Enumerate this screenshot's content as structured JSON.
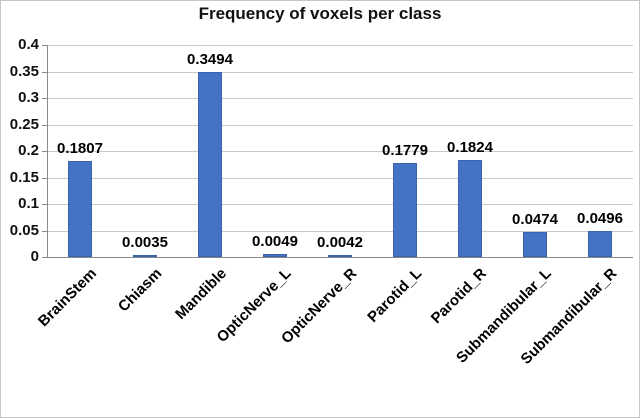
{
  "chart_data": {
    "type": "bar",
    "title": "Frequency of voxels per class",
    "categories": [
      "BrainStem",
      "Chiasm",
      "Mandible",
      "OpticNerve_L",
      "OpticNerve_R",
      "Parotid_L",
      "Parotid_R",
      "Submandibular_L",
      "Submandibular_R"
    ],
    "values": [
      0.1807,
      0.0035,
      0.3494,
      0.0049,
      0.0042,
      0.1779,
      0.1824,
      0.0474,
      0.0496
    ],
    "value_labels": [
      "0.1807",
      "0.0035",
      "0.3494",
      "0.0049",
      "0.0042",
      "0.1779",
      "0.1824",
      "0.0474",
      "0.0496"
    ],
    "xlabel": "",
    "ylabel": "",
    "ylim": [
      0,
      0.4
    ],
    "yticks": [
      "0",
      "0.05",
      "0.1",
      "0.15",
      "0.2",
      "0.25",
      "0.3",
      "0.35",
      "0.4"
    ],
    "grid": true,
    "legend": "none",
    "bar_color": "#4472c4"
  }
}
